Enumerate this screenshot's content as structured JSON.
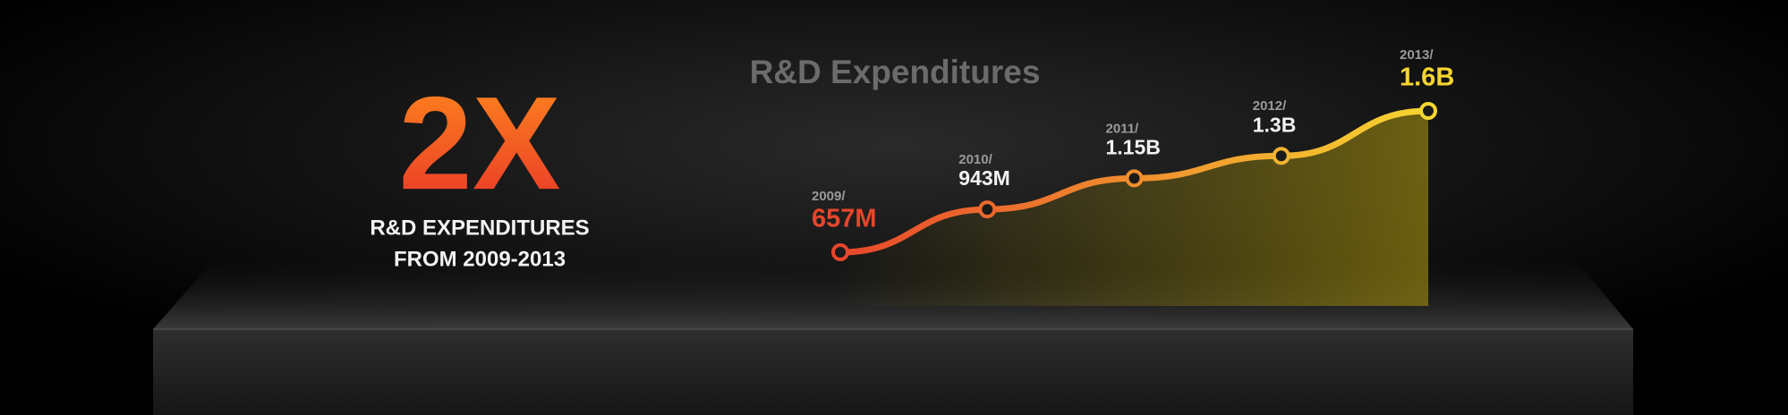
{
  "chart_data": {
    "type": "line",
    "title": "R&D Expenditures",
    "annotations": [
      "2X",
      "R&D EXPENDITURES",
      "FROM 2009-2013"
    ],
    "categories": [
      "2009/",
      "2010/",
      "2011/",
      "2012/",
      "2013/"
    ],
    "values": [
      657,
      943,
      1150,
      1300,
      1600
    ],
    "value_labels": [
      "657M",
      "943M",
      "1.15B",
      "1.3B",
      "1.6B"
    ],
    "color_start": "#e8452c",
    "color_end": "#f7d631"
  }
}
